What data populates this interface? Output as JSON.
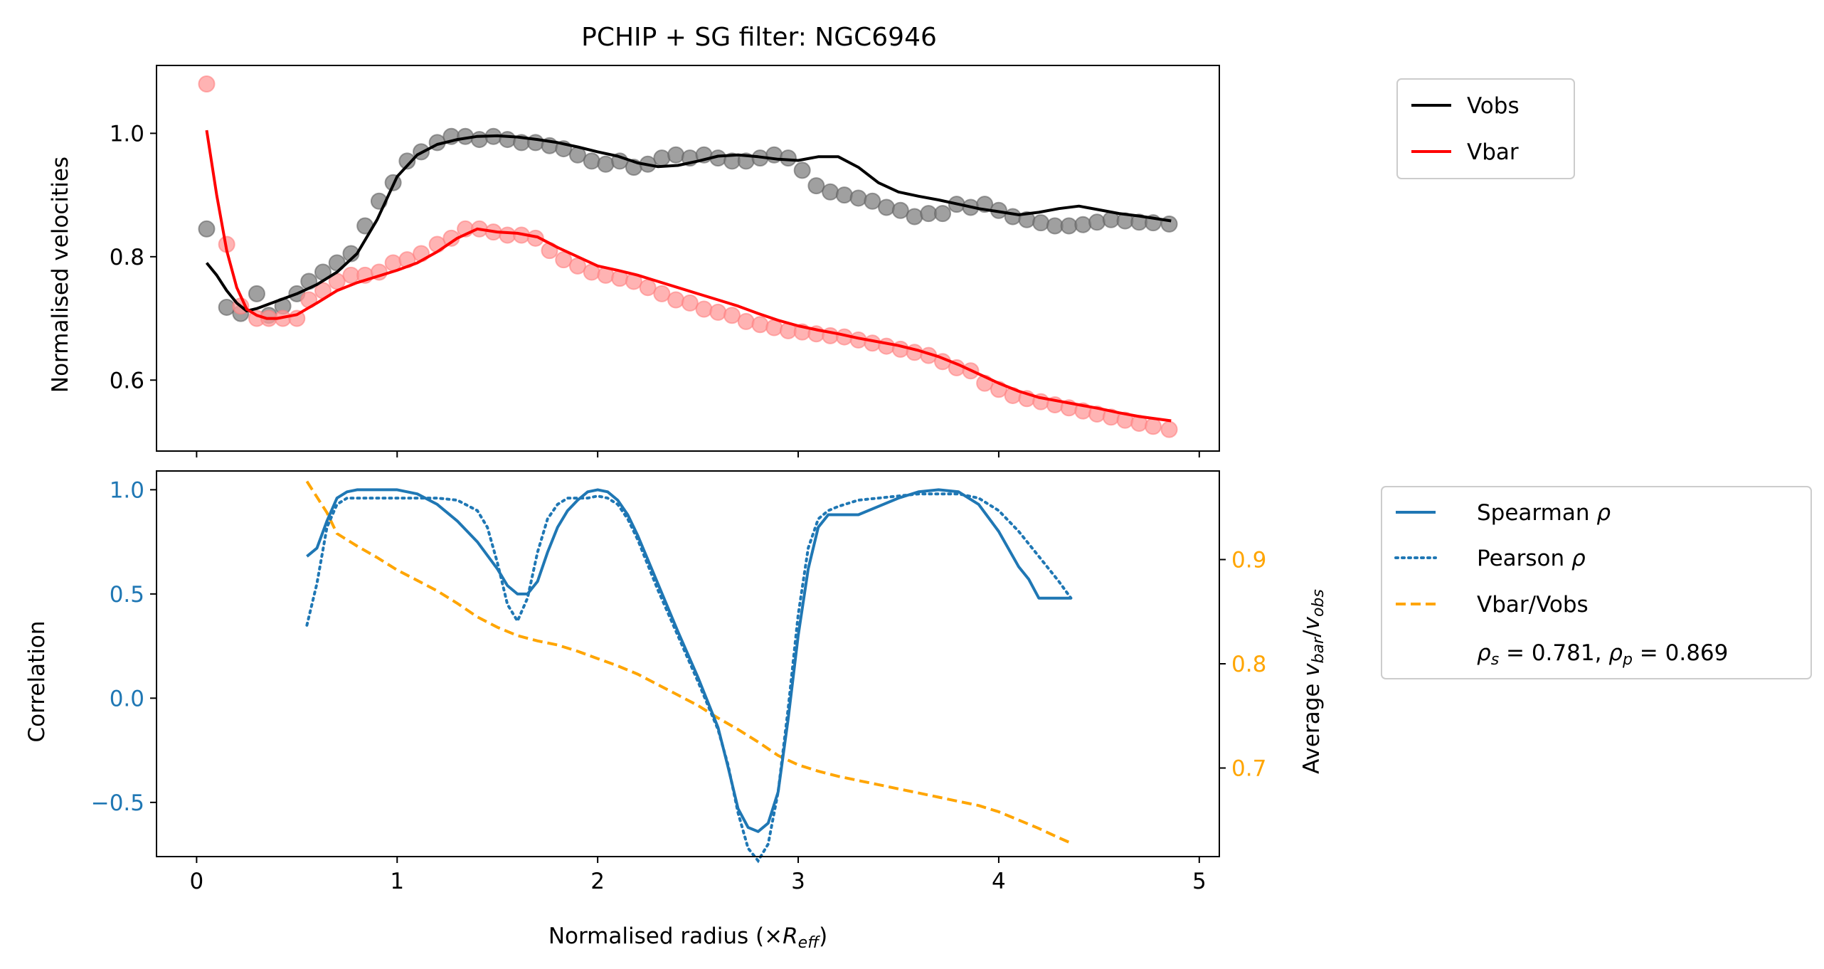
{
  "chart_data": [
    {
      "type": "line",
      "title": "PCHIP + SG filter: NGC6946",
      "xlabel": "",
      "ylabel": "Normalised velocities",
      "xlim": [
        -0.2,
        5.1
      ],
      "ylim": [
        0.485,
        1.11
      ],
      "yticks": [
        "0.6",
        "0.8",
        "1.0"
      ],
      "ytick_values": [
        0.6,
        0.8,
        1.0
      ],
      "legend_position": "outside-right-top",
      "legend": [
        "Vobs",
        "Vbar"
      ],
      "colors": {
        "Vobs": "#000000",
        "Vbar": "#ff0000",
        "vobs_points": "#808080",
        "vbar_points": "#ff9999"
      },
      "series": [
        {
          "name": "Vobs",
          "points_x": [
            0.05,
            0.15,
            0.22,
            0.3,
            0.36,
            0.43,
            0.5,
            0.56,
            0.63,
            0.7,
            0.77,
            0.84,
            0.91,
            0.98,
            1.05,
            1.12,
            1.2,
            1.27,
            1.34,
            1.41,
            1.48,
            1.55,
            1.62,
            1.69,
            1.76,
            1.83,
            1.9,
            1.97,
            2.04,
            2.11,
            2.18,
            2.25,
            2.32,
            2.39,
            2.46,
            2.53,
            2.6,
            2.67,
            2.74,
            2.81,
            2.88,
            2.95,
            3.02,
            3.09,
            3.16,
            3.23,
            3.3,
            3.37,
            3.44,
            3.51,
            3.58,
            3.65,
            3.72,
            3.79,
            3.86,
            3.93,
            4.0,
            4.07,
            4.14,
            4.21,
            4.28,
            4.35,
            4.42,
            4.49,
            4.56,
            4.63,
            4.7,
            4.77,
            4.85
          ],
          "points_y": [
            0.845,
            0.718,
            0.708,
            0.74,
            0.705,
            0.72,
            0.74,
            0.76,
            0.775,
            0.79,
            0.805,
            0.85,
            0.89,
            0.92,
            0.955,
            0.97,
            0.985,
            0.995,
            0.995,
            0.99,
            0.995,
            0.99,
            0.985,
            0.985,
            0.98,
            0.975,
            0.965,
            0.955,
            0.95,
            0.955,
            0.945,
            0.95,
            0.96,
            0.965,
            0.96,
            0.965,
            0.96,
            0.955,
            0.955,
            0.96,
            0.965,
            0.96,
            0.94,
            0.915,
            0.905,
            0.9,
            0.895,
            0.89,
            0.88,
            0.875,
            0.865,
            0.87,
            0.87,
            0.885,
            0.88,
            0.885,
            0.875,
            0.865,
            0.86,
            0.855,
            0.85,
            0.85,
            0.852,
            0.856,
            0.86,
            0.858,
            0.856,
            0.855,
            0.853
          ],
          "line_x": [
            0.05,
            0.1,
            0.15,
            0.2,
            0.25,
            0.3,
            0.4,
            0.5,
            0.6,
            0.7,
            0.8,
            0.9,
            1.0,
            1.1,
            1.2,
            1.3,
            1.4,
            1.5,
            1.6,
            1.7,
            1.8,
            1.9,
            2.0,
            2.1,
            2.2,
            2.3,
            2.4,
            2.5,
            2.6,
            2.7,
            2.8,
            2.9,
            3.0,
            3.1,
            3.2,
            3.3,
            3.4,
            3.5,
            3.6,
            3.7,
            3.8,
            3.9,
            4.0,
            4.1,
            4.2,
            4.3,
            4.4,
            4.5,
            4.6,
            4.7,
            4.86
          ],
          "line_y": [
            0.79,
            0.77,
            0.745,
            0.725,
            0.712,
            0.716,
            0.728,
            0.74,
            0.755,
            0.775,
            0.805,
            0.86,
            0.93,
            0.965,
            0.982,
            0.99,
            0.995,
            0.996,
            0.994,
            0.99,
            0.985,
            0.978,
            0.97,
            0.963,
            0.952,
            0.946,
            0.948,
            0.955,
            0.963,
            0.965,
            0.962,
            0.958,
            0.956,
            0.962,
            0.962,
            0.945,
            0.92,
            0.905,
            0.898,
            0.892,
            0.885,
            0.878,
            0.873,
            0.868,
            0.872,
            0.878,
            0.882,
            0.876,
            0.87,
            0.866,
            0.858
          ]
        },
        {
          "name": "Vbar",
          "points_x": [
            0.05,
            0.15,
            0.22,
            0.3,
            0.36,
            0.43,
            0.5,
            0.56,
            0.63,
            0.7,
            0.77,
            0.84,
            0.91,
            0.98,
            1.05,
            1.12,
            1.2,
            1.27,
            1.34,
            1.41,
            1.48,
            1.55,
            1.62,
            1.69,
            1.76,
            1.83,
            1.9,
            1.97,
            2.04,
            2.11,
            2.18,
            2.25,
            2.32,
            2.39,
            2.46,
            2.53,
            2.6,
            2.67,
            2.74,
            2.81,
            2.88,
            2.95,
            3.02,
            3.09,
            3.16,
            3.23,
            3.3,
            3.37,
            3.44,
            3.51,
            3.58,
            3.65,
            3.72,
            3.79,
            3.86,
            3.93,
            4.0,
            4.07,
            4.14,
            4.21,
            4.28,
            4.35,
            4.42,
            4.49,
            4.56,
            4.63,
            4.7,
            4.77,
            4.85
          ],
          "points_y": [
            1.08,
            0.82,
            0.72,
            0.7,
            0.7,
            0.7,
            0.7,
            0.73,
            0.745,
            0.76,
            0.77,
            0.77,
            0.775,
            0.79,
            0.795,
            0.805,
            0.82,
            0.83,
            0.845,
            0.845,
            0.84,
            0.835,
            0.835,
            0.83,
            0.81,
            0.795,
            0.785,
            0.775,
            0.77,
            0.765,
            0.76,
            0.75,
            0.74,
            0.73,
            0.725,
            0.715,
            0.71,
            0.705,
            0.695,
            0.69,
            0.685,
            0.68,
            0.678,
            0.675,
            0.672,
            0.67,
            0.665,
            0.66,
            0.655,
            0.65,
            0.645,
            0.64,
            0.63,
            0.62,
            0.615,
            0.595,
            0.585,
            0.575,
            0.57,
            0.565,
            0.56,
            0.555,
            0.55,
            0.545,
            0.54,
            0.535,
            0.53,
            0.525,
            0.52
          ],
          "line_x": [
            0.05,
            0.1,
            0.15,
            0.2,
            0.25,
            0.3,
            0.35,
            0.4,
            0.5,
            0.6,
            0.7,
            0.8,
            0.9,
            1.0,
            1.1,
            1.2,
            1.3,
            1.4,
            1.5,
            1.6,
            1.7,
            1.8,
            1.9,
            2.0,
            2.1,
            2.2,
            2.3,
            2.4,
            2.5,
            2.6,
            2.7,
            2.8,
            2.9,
            3.0,
            3.1,
            3.2,
            3.3,
            3.4,
            3.5,
            3.6,
            3.7,
            3.8,
            3.9,
            4.0,
            4.1,
            4.2,
            4.3,
            4.4,
            4.5,
            4.6,
            4.7,
            4.86
          ],
          "line_y": [
            1.005,
            0.9,
            0.81,
            0.75,
            0.715,
            0.705,
            0.7,
            0.7,
            0.706,
            0.725,
            0.745,
            0.758,
            0.768,
            0.778,
            0.79,
            0.808,
            0.83,
            0.845,
            0.84,
            0.838,
            0.832,
            0.815,
            0.8,
            0.785,
            0.778,
            0.77,
            0.76,
            0.75,
            0.74,
            0.73,
            0.72,
            0.708,
            0.697,
            0.688,
            0.681,
            0.675,
            0.668,
            0.662,
            0.656,
            0.648,
            0.638,
            0.625,
            0.61,
            0.595,
            0.582,
            0.572,
            0.566,
            0.56,
            0.554,
            0.547,
            0.541,
            0.534
          ]
        }
      ]
    },
    {
      "type": "line",
      "title": "",
      "xlabel": "Normalised radius (×R_eff)",
      "ylabel": "Correlation",
      "y2label": "Average v_bar/v_obs",
      "xlim": [
        -0.2,
        5.1
      ],
      "ylim": [
        -0.76,
        1.09
      ],
      "y2lim": [
        0.615,
        0.985
      ],
      "xticks": [
        "0",
        "1",
        "2",
        "3",
        "4",
        "5"
      ],
      "xtick_values": [
        0,
        1,
        2,
        3,
        4,
        5
      ],
      "yticks": [
        "−0.5",
        "0.0",
        "0.5",
        "1.0"
      ],
      "ytick_values": [
        -0.5,
        0.0,
        0.5,
        1.0
      ],
      "y2ticks": [
        "0.7",
        "0.8",
        "0.9"
      ],
      "y2tick_values": [
        0.7,
        0.8,
        0.9
      ],
      "legend_position": "outside-right",
      "legend": [
        "Spearman ρ",
        "Pearson ρ",
        "Vbar/Vobs",
        "ρs = 0.781, ρp = 0.869"
      ],
      "colors": {
        "spearman": "#1f77b4",
        "pearson": "#1f77b4",
        "ratio": "#ffa500",
        "left_axis": "#1f77b4",
        "right_axis": "#ffa500"
      },
      "series": [
        {
          "name": "Spearman ρ",
          "axis": "left",
          "x": [
            0.55,
            0.6,
            0.65,
            0.7,
            0.75,
            0.8,
            0.9,
            1.0,
            1.1,
            1.2,
            1.3,
            1.4,
            1.5,
            1.55,
            1.6,
            1.65,
            1.7,
            1.75,
            1.8,
            1.85,
            1.9,
            1.95,
            2.0,
            2.05,
            2.1,
            2.15,
            2.2,
            2.3,
            2.4,
            2.5,
            2.6,
            2.65,
            2.7,
            2.75,
            2.8,
            2.85,
            2.9,
            2.95,
            3.0,
            3.05,
            3.1,
            3.15,
            3.2,
            3.3,
            3.4,
            3.5,
            3.6,
            3.7,
            3.8,
            3.9,
            4.0,
            4.1,
            4.15,
            4.2,
            4.36
          ],
          "y": [
            0.68,
            0.72,
            0.85,
            0.96,
            0.99,
            1.0,
            1.0,
            1.0,
            0.98,
            0.93,
            0.85,
            0.75,
            0.62,
            0.54,
            0.5,
            0.5,
            0.56,
            0.7,
            0.82,
            0.9,
            0.95,
            0.99,
            1.0,
            0.99,
            0.95,
            0.88,
            0.78,
            0.55,
            0.32,
            0.1,
            -0.14,
            -0.33,
            -0.53,
            -0.62,
            -0.64,
            -0.6,
            -0.45,
            -0.1,
            0.3,
            0.62,
            0.82,
            0.88,
            0.88,
            0.88,
            0.92,
            0.96,
            0.99,
            1.0,
            0.99,
            0.93,
            0.8,
            0.63,
            0.57,
            0.48,
            0.48
          ]
        },
        {
          "name": "Pearson ρ",
          "axis": "left",
          "x": [
            0.55,
            0.6,
            0.65,
            0.7,
            0.75,
            0.8,
            0.9,
            1.0,
            1.1,
            1.2,
            1.3,
            1.4,
            1.45,
            1.5,
            1.55,
            1.6,
            1.65,
            1.7,
            1.75,
            1.8,
            1.85,
            1.9,
            1.95,
            2.0,
            2.05,
            2.1,
            2.15,
            2.2,
            2.3,
            2.4,
            2.5,
            2.6,
            2.65,
            2.7,
            2.75,
            2.8,
            2.85,
            2.9,
            2.95,
            3.0,
            3.05,
            3.1,
            3.15,
            3.2,
            3.3,
            3.4,
            3.5,
            3.6,
            3.7,
            3.8,
            3.9,
            4.0,
            4.1,
            4.2,
            4.3,
            4.36
          ],
          "y": [
            0.35,
            0.55,
            0.82,
            0.93,
            0.96,
            0.96,
            0.96,
            0.96,
            0.96,
            0.96,
            0.95,
            0.9,
            0.82,
            0.65,
            0.45,
            0.37,
            0.48,
            0.7,
            0.86,
            0.93,
            0.96,
            0.96,
            0.96,
            0.97,
            0.96,
            0.93,
            0.86,
            0.76,
            0.52,
            0.3,
            0.08,
            -0.15,
            -0.32,
            -0.55,
            -0.72,
            -0.78,
            -0.7,
            -0.45,
            -0.05,
            0.4,
            0.72,
            0.86,
            0.9,
            0.92,
            0.95,
            0.96,
            0.97,
            0.98,
            0.98,
            0.98,
            0.96,
            0.9,
            0.8,
            0.68,
            0.56,
            0.48
          ]
        },
        {
          "name": "Vbar/Vobs",
          "axis": "right",
          "x": [
            0.55,
            0.6,
            0.65,
            0.7,
            0.8,
            0.9,
            1.0,
            1.1,
            1.2,
            1.3,
            1.4,
            1.5,
            1.6,
            1.7,
            1.8,
            1.9,
            2.0,
            2.1,
            2.2,
            2.3,
            2.4,
            2.5,
            2.6,
            2.7,
            2.8,
            2.9,
            3.0,
            3.1,
            3.2,
            3.3,
            3.4,
            3.5,
            3.6,
            3.7,
            3.8,
            3.9,
            4.0,
            4.1,
            4.2,
            4.3,
            4.36
          ],
          "y": [
            0.975,
            0.96,
            0.945,
            0.925,
            0.913,
            0.902,
            0.89,
            0.88,
            0.87,
            0.858,
            0.845,
            0.835,
            0.827,
            0.822,
            0.818,
            0.812,
            0.805,
            0.798,
            0.79,
            0.78,
            0.77,
            0.76,
            0.748,
            0.737,
            0.725,
            0.712,
            0.703,
            0.697,
            0.692,
            0.688,
            0.684,
            0.68,
            0.676,
            0.672,
            0.668,
            0.664,
            0.658,
            0.65,
            0.642,
            0.633,
            0.628
          ]
        }
      ]
    }
  ]
}
